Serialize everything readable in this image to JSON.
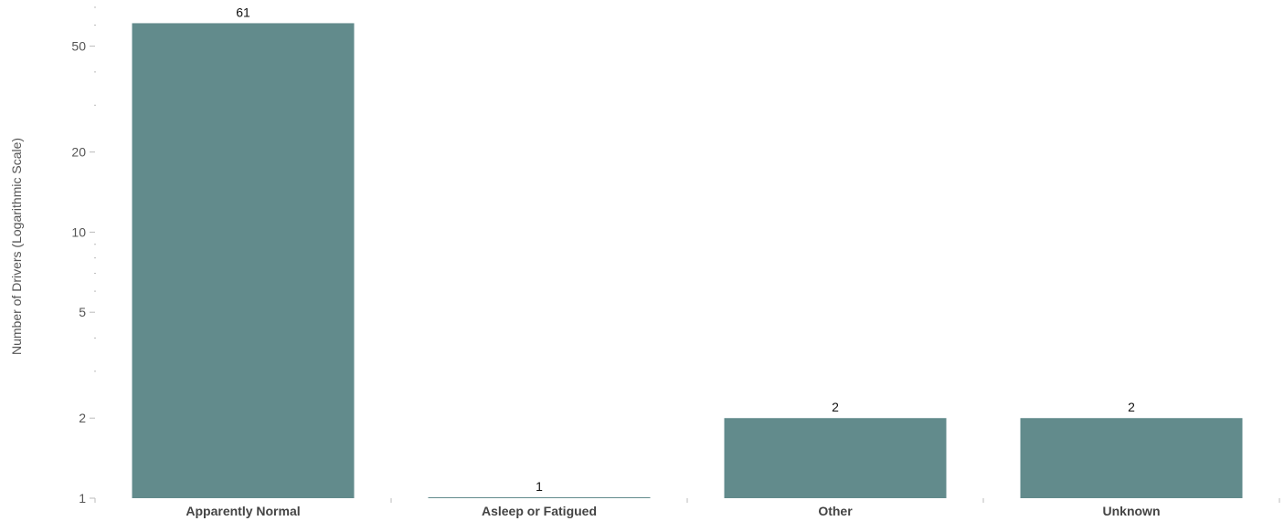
{
  "chart_data": {
    "type": "bar",
    "categories": [
      "Apparently Normal",
      "Asleep or Fatigued",
      "Other",
      "Unknown"
    ],
    "values": [
      61,
      1,
      2,
      2
    ],
    "title": "",
    "xlabel": "",
    "ylabel": "Number of Drivers (Logarithmic Scale)",
    "yscale": "log",
    "ylim": [
      1,
      70
    ],
    "yticks": [
      1,
      2,
      5,
      10,
      20,
      50
    ],
    "ytick_labels": [
      "1",
      "2",
      "5",
      "10",
      "20",
      "50"
    ],
    "data_labels": [
      "61",
      "1",
      "2",
      "2"
    ],
    "grid": false,
    "legend": "none",
    "bar_color": "#628b8c",
    "axis_color": "#bbbbbb"
  }
}
